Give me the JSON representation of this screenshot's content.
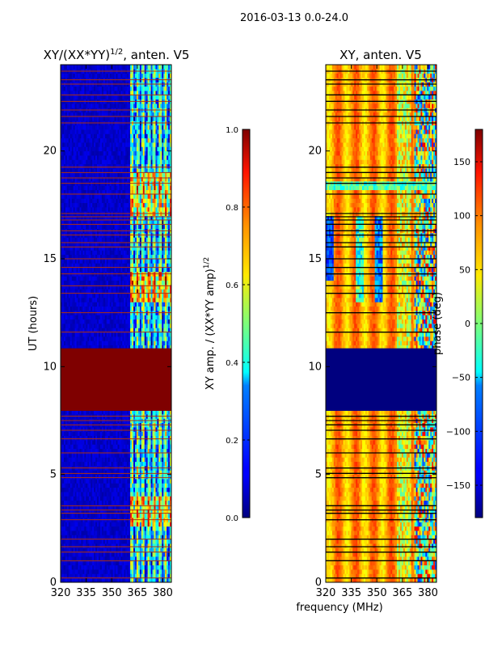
{
  "figure": {
    "suptitle": "2016-03-13 0.0-24.0",
    "xlabel": "frequency (MHz)"
  },
  "colors": {
    "jet_dark_blue": "#00007f",
    "jet_blue": "#0000ff",
    "jet_light_blue": "#0080ff",
    "jet_cyan": "#00ffff",
    "jet_green": "#7dff7a",
    "jet_yellow": "#ffea00",
    "jet_orange": "#ff9400",
    "jet_red": "#ff1400",
    "jet_dark_red": "#7f0000"
  },
  "chart_data": [
    {
      "type": "heatmap",
      "name": "amplitude",
      "title_main": "XY/(XX*YY)",
      "title_sup": "1/2",
      "title_rest": ", anten. V5",
      "ylabel": "UT (hours)",
      "xlim": [
        320,
        385
      ],
      "ylim": [
        0,
        24
      ],
      "xticks": [
        320,
        335,
        350,
        365,
        380
      ],
      "yticks": [
        0,
        5,
        10,
        15,
        20
      ],
      "flagged_band_hours": [
        7.95,
        10.85
      ],
      "flagged_value": 1.0,
      "bright_channels_mhz": [
        361,
        385
      ],
      "gap_rows_hours": [
        0.2,
        1.0,
        1.4,
        1.65,
        2.0,
        2.9,
        3.2,
        3.35,
        3.55,
        4.85,
        5.05,
        5.3,
        6.0,
        6.65,
        7.05,
        7.3,
        7.5,
        7.7,
        11.6,
        12.5,
        13.4,
        13.75,
        14.3,
        14.6,
        15.0,
        15.55,
        15.75,
        16.1,
        16.3,
        16.6,
        16.8,
        16.95,
        17.1,
        18.0,
        18.5,
        18.75,
        19.0,
        19.25,
        21.3,
        21.6,
        21.9,
        22.3,
        22.6,
        23.1,
        23.3,
        23.7
      ]
    },
    {
      "type": "colorbar",
      "name": "amplitude-colorbar",
      "label_main": "XY amp. / (XX*YY amp)",
      "label_sup": "1/2",
      "range": [
        0.0,
        1.0
      ],
      "ticks": [
        "0.0",
        "0.2",
        "0.4",
        "0.6",
        "0.8",
        "1.0"
      ]
    },
    {
      "type": "heatmap",
      "name": "phase",
      "title": "XY, anten. V5",
      "xlim": [
        320,
        385
      ],
      "ylim": [
        0,
        24
      ],
      "xticks": [
        320,
        335,
        350,
        365,
        380
      ],
      "yticks": [
        0,
        5,
        10,
        15,
        20
      ],
      "flagged_band_hours": [
        7.95,
        10.85
      ],
      "flagged_value": -180,
      "gap_rows_hours": [
        0.2,
        1.0,
        1.4,
        1.65,
        2.0,
        2.9,
        3.2,
        3.35,
        3.55,
        4.85,
        5.05,
        5.3,
        6.0,
        6.65,
        7.05,
        7.3,
        7.5,
        7.7,
        11.6,
        12.5,
        13.4,
        13.75,
        14.3,
        14.6,
        15.0,
        15.55,
        15.75,
        16.1,
        16.3,
        16.6,
        16.8,
        16.95,
        17.1,
        18.0,
        18.5,
        18.75,
        19.0,
        19.25,
        21.3,
        21.6,
        21.9,
        22.3,
        22.6,
        23.1,
        23.3,
        23.7
      ]
    },
    {
      "type": "colorbar",
      "name": "phase-colorbar",
      "label": "phase (deg)",
      "range": [
        -180,
        180
      ],
      "ticks": [
        "150",
        "100",
        "50",
        "0",
        "−50",
        "−100",
        "−150"
      ],
      "tick_values": [
        150,
        100,
        50,
        0,
        -50,
        -100,
        -150
      ]
    }
  ]
}
